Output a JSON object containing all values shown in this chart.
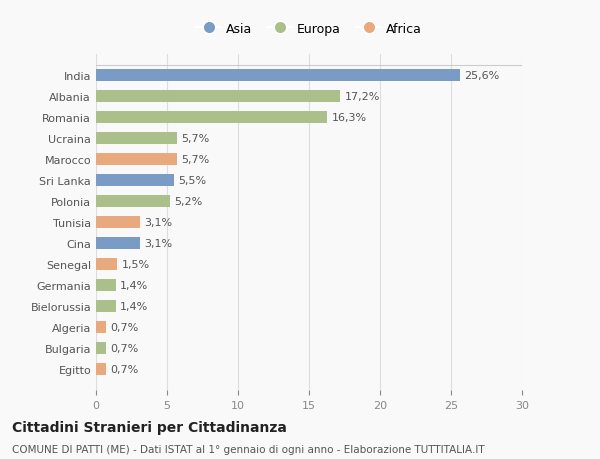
{
  "categories": [
    "Egitto",
    "Bulgaria",
    "Algeria",
    "Bielorussia",
    "Germania",
    "Senegal",
    "Cina",
    "Tunisia",
    "Polonia",
    "Sri Lanka",
    "Marocco",
    "Ucraina",
    "Romania",
    "Albania",
    "India"
  ],
  "values": [
    0.7,
    0.7,
    0.7,
    1.4,
    1.4,
    1.5,
    3.1,
    3.1,
    5.2,
    5.5,
    5.7,
    5.7,
    16.3,
    17.2,
    25.6
  ],
  "labels": [
    "0,7%",
    "0,7%",
    "0,7%",
    "1,4%",
    "1,4%",
    "1,5%",
    "3,1%",
    "3,1%",
    "5,2%",
    "5,5%",
    "5,7%",
    "5,7%",
    "16,3%",
    "17,2%",
    "25,6%"
  ],
  "colors": [
    "#E8A97E",
    "#AABF8A",
    "#E8A97E",
    "#AABF8A",
    "#AABF8A",
    "#E8A97E",
    "#7A9CC4",
    "#E8A97E",
    "#AABF8A",
    "#7A9CC4",
    "#E8A97E",
    "#AABF8A",
    "#AABF8A",
    "#AABF8A",
    "#7A9CC4"
  ],
  "continent": [
    "Africa",
    "Europa",
    "Africa",
    "Europa",
    "Europa",
    "Africa",
    "Asia",
    "Africa",
    "Europa",
    "Asia",
    "Africa",
    "Europa",
    "Europa",
    "Europa",
    "Asia"
  ],
  "legend_labels": [
    "Asia",
    "Europa",
    "Africa"
  ],
  "legend_colors": [
    "#7A9CC4",
    "#AABF8A",
    "#E8A97E"
  ],
  "xlim": [
    0,
    30
  ],
  "xticks": [
    0,
    5,
    10,
    15,
    20,
    25,
    30
  ],
  "title": "Cittadini Stranieri per Cittadinanza",
  "subtitle": "COMUNE DI PATTI (ME) - Dati ISTAT al 1° gennaio di ogni anno - Elaborazione TUTTITALIA.IT",
  "background_color": "#f9f9f9",
  "bar_height": 0.55,
  "label_fontsize": 8,
  "tick_fontsize": 8,
  "title_fontsize": 10,
  "subtitle_fontsize": 7.5
}
